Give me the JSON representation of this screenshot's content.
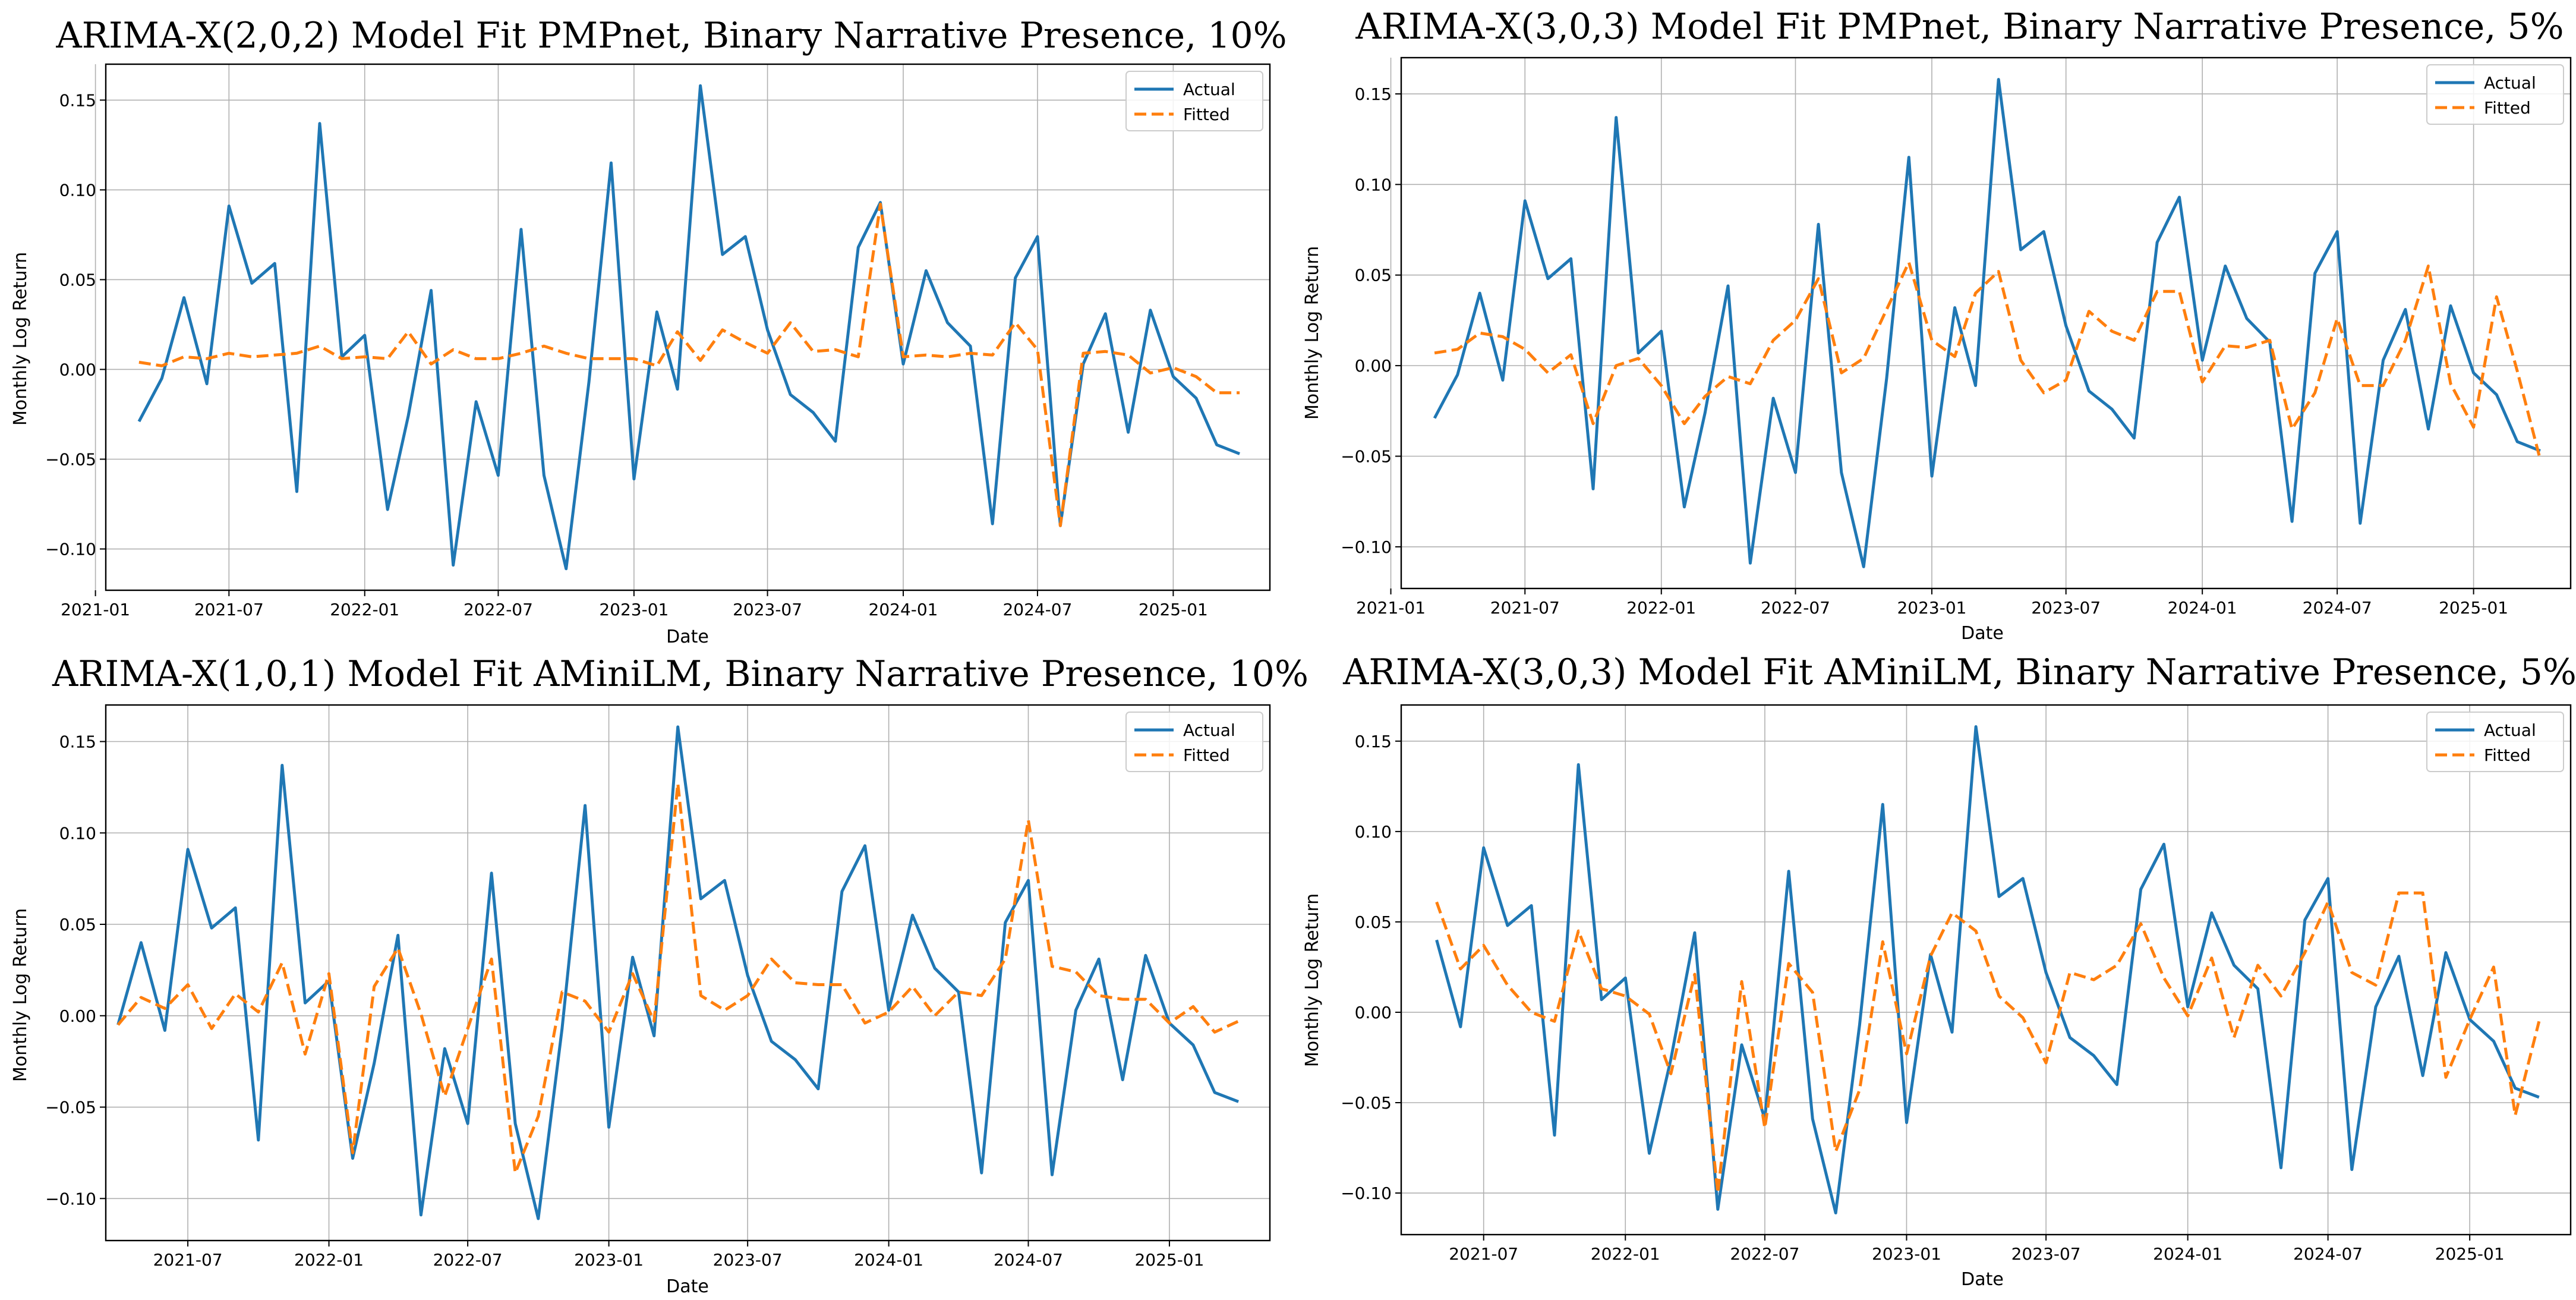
{
  "colors": {
    "actual": "#1f77b4",
    "fitted": "#ff7f0e",
    "grid": "#b0b0b0"
  },
  "legend": {
    "actual": "Actual",
    "fitted": "Fitted",
    "placement": "upper-right"
  },
  "chart_data": [
    {
      "type": "line",
      "title": "ARIMA-X(2,0,2) Model Fit PMPnet, Binary Narrative Presence, 10%",
      "xlabel": "Date",
      "ylabel": "Monthly Log Return",
      "xlim": [
        "2021-01-15",
        "2025-05-12"
      ],
      "ylim": [
        -0.123,
        0.17
      ],
      "x_ticks": [
        "2021-01",
        "2021-07",
        "2022-01",
        "2022-07",
        "2023-01",
        "2023-07",
        "2024-01",
        "2024-07",
        "2025-01"
      ],
      "y_ticks": [
        -0.1,
        -0.05,
        0.0,
        0.05,
        0.1,
        0.15
      ],
      "y_tick_labels": [
        "−0.10",
        "−0.05",
        "0.00",
        "0.05",
        "0.10",
        "0.15"
      ],
      "grid": true,
      "x_start": "2021-03",
      "series": [
        {
          "name": "Actual",
          "style": "solid",
          "values": [
            -0.029,
            -0.005,
            0.04,
            -0.008,
            0.091,
            0.048,
            0.059,
            -0.068,
            0.137,
            0.007,
            0.019,
            -0.078,
            -0.026,
            0.044,
            -0.109,
            -0.018,
            -0.059,
            0.078,
            -0.059,
            -0.111,
            -0.007,
            0.115,
            -0.061,
            0.032,
            -0.011,
            0.158,
            0.064,
            0.074,
            0.022,
            -0.014,
            -0.024,
            -0.04,
            0.068,
            0.093,
            0.003,
            0.055,
            0.026,
            0.013,
            -0.086,
            0.051,
            0.074,
            -0.087,
            0.003,
            0.031,
            -0.035,
            0.033,
            -0.004,
            -0.016,
            -0.042,
            -0.047
          ]
        },
        {
          "name": "Fitted",
          "style": "dashed",
          "values": [
            0.004,
            0.002,
            0.007,
            0.006,
            0.009,
            0.007,
            0.008,
            0.009,
            0.013,
            0.006,
            0.007,
            0.006,
            0.021,
            0.003,
            0.011,
            0.006,
            0.006,
            0.009,
            0.013,
            0.009,
            0.006,
            0.006,
            0.006,
            0.002,
            0.021,
            0.005,
            0.022,
            0.015,
            0.009,
            0.026,
            0.01,
            0.011,
            0.007,
            0.092,
            0.007,
            0.008,
            0.007,
            0.009,
            0.008,
            0.026,
            0.011,
            -0.087,
            0.009,
            0.01,
            0.008,
            -0.002,
            0.001,
            -0.004,
            -0.013,
            -0.013
          ]
        }
      ]
    },
    {
      "type": "line",
      "title": "ARIMA-X(3,0,3) Model Fit PMPnet, Binary Narrative Presence, 5%",
      "xlabel": "Date",
      "ylabel": "Monthly Log Return",
      "xlim": [
        "2021-01-15",
        "2025-05-12"
      ],
      "ylim": [
        -0.123,
        0.17
      ],
      "x_ticks": [
        "2021-01",
        "2021-07",
        "2022-01",
        "2022-07",
        "2023-01",
        "2023-07",
        "2024-01",
        "2024-07",
        "2025-01"
      ],
      "y_ticks": [
        -0.1,
        -0.05,
        0.0,
        0.05,
        0.1,
        0.15
      ],
      "y_tick_labels": [
        "−0.10",
        "−0.05",
        "0.00",
        "0.05",
        "0.10",
        "0.15"
      ],
      "grid": true,
      "x_start": "2021-03",
      "series": [
        {
          "name": "Actual",
          "style": "solid",
          "values": [
            -0.029,
            -0.005,
            0.04,
            -0.008,
            0.091,
            0.048,
            0.059,
            -0.068,
            0.137,
            0.007,
            0.019,
            -0.078,
            -0.026,
            0.044,
            -0.109,
            -0.018,
            -0.059,
            0.078,
            -0.059,
            -0.111,
            -0.007,
            0.115,
            -0.061,
            0.032,
            -0.011,
            0.158,
            0.064,
            0.074,
            0.022,
            -0.014,
            -0.024,
            -0.04,
            0.068,
            0.093,
            0.003,
            0.055,
            0.026,
            0.013,
            -0.086,
            0.051,
            0.074,
            -0.087,
            0.003,
            0.031,
            -0.035,
            0.033,
            -0.004,
            -0.016,
            -0.042,
            -0.047
          ]
        },
        {
          "name": "Fitted",
          "style": "dashed",
          "values": [
            0.007,
            0.009,
            0.018,
            0.016,
            0.009,
            -0.004,
            0.006,
            -0.032,
            0.0,
            0.004,
            -0.011,
            -0.032,
            -0.017,
            -0.006,
            -0.01,
            0.014,
            0.025,
            0.048,
            -0.004,
            0.004,
            0.031,
            0.057,
            0.014,
            0.005,
            0.04,
            0.052,
            0.003,
            -0.015,
            -0.008,
            0.03,
            0.019,
            0.014,
            0.041,
            0.041,
            -0.009,
            0.011,
            0.01,
            0.014,
            -0.035,
            -0.015,
            0.026,
            -0.011,
            -0.011,
            0.014,
            0.055,
            -0.01,
            -0.034,
            0.038,
            -0.003,
            -0.052
          ]
        }
      ]
    },
    {
      "type": "line",
      "title": "ARIMA-X(1,0,1) Model Fit AMiniLM, Binary Narrative Presence, 10%",
      "xlabel": "Date",
      "ylabel": "Monthly Log Return",
      "xlim": [
        "2021-03-16",
        "2025-05-12"
      ],
      "ylim": [
        -0.123,
        0.17
      ],
      "x_ticks": [
        "2021-07",
        "2022-01",
        "2022-07",
        "2023-01",
        "2023-07",
        "2024-01",
        "2024-07",
        "2025-01"
      ],
      "y_ticks": [
        -0.1,
        -0.05,
        0.0,
        0.05,
        0.1,
        0.15
      ],
      "y_tick_labels": [
        "−0.10",
        "−0.05",
        "0.00",
        "0.05",
        "0.10",
        "0.15"
      ],
      "grid": true,
      "x_start": "2021-04",
      "series": [
        {
          "name": "Actual",
          "style": "solid",
          "values": [
            -0.005,
            0.04,
            -0.008,
            0.091,
            0.048,
            0.059,
            -0.068,
            0.137,
            0.007,
            0.019,
            -0.078,
            -0.026,
            0.044,
            -0.109,
            -0.018,
            -0.059,
            0.078,
            -0.059,
            -0.111,
            -0.007,
            0.115,
            -0.061,
            0.032,
            -0.011,
            0.158,
            0.064,
            0.074,
            0.022,
            -0.014,
            -0.024,
            -0.04,
            0.068,
            0.093,
            0.003,
            0.055,
            0.026,
            0.013,
            -0.086,
            0.051,
            0.074,
            -0.087,
            0.003,
            0.031,
            -0.035,
            0.033,
            -0.004,
            -0.016,
            -0.042,
            -0.047
          ]
        },
        {
          "name": "Fitted",
          "style": "dashed",
          "values": [
            -0.005,
            0.01,
            0.004,
            0.017,
            -0.007,
            0.012,
            0.002,
            0.029,
            -0.021,
            0.023,
            -0.075,
            0.016,
            0.037,
            0.001,
            -0.044,
            -0.007,
            0.031,
            -0.086,
            -0.055,
            0.013,
            0.008,
            -0.009,
            0.023,
            -0.003,
            0.127,
            0.011,
            0.003,
            0.011,
            0.031,
            0.018,
            0.017,
            0.017,
            -0.004,
            0.002,
            0.016,
            0.0,
            0.013,
            0.011,
            0.031,
            0.107,
            0.027,
            0.024,
            0.011,
            0.009,
            0.009,
            -0.004,
            0.005,
            -0.009,
            -0.003
          ]
        }
      ]
    },
    {
      "type": "line",
      "title": "ARIMA-X(3,0,3) Model Fit AMiniLM, Binary Narrative Presence, 5%",
      "xlabel": "Date",
      "ylabel": "Monthly Log Return",
      "xlim": [
        "2021-03-16",
        "2025-05-12"
      ],
      "ylim": [
        -0.123,
        0.17
      ],
      "x_ticks": [
        "2021-07",
        "2022-01",
        "2022-07",
        "2023-01",
        "2023-07",
        "2024-01",
        "2024-07",
        "2025-01"
      ],
      "y_ticks": [
        -0.1,
        -0.05,
        0.0,
        0.05,
        0.1,
        0.15
      ],
      "y_tick_labels": [
        "−0.10",
        "−0.05",
        "0.00",
        "0.05",
        "0.10",
        "0.15"
      ],
      "grid": true,
      "x_start": "2021-05",
      "series": [
        {
          "name": "Actual",
          "style": "solid",
          "values": [
            0.04,
            -0.008,
            0.091,
            0.048,
            0.059,
            -0.068,
            0.137,
            0.007,
            0.019,
            -0.078,
            -0.026,
            0.044,
            -0.109,
            -0.018,
            -0.059,
            0.078,
            -0.059,
            -0.111,
            -0.007,
            0.115,
            -0.061,
            0.032,
            -0.011,
            0.158,
            0.064,
            0.074,
            0.022,
            -0.014,
            -0.024,
            -0.04,
            0.068,
            0.093,
            0.003,
            0.055,
            0.026,
            0.013,
            -0.086,
            0.051,
            0.074,
            -0.087,
            0.003,
            0.031,
            -0.035,
            0.033,
            -0.004,
            -0.016,
            -0.042,
            -0.047
          ]
        },
        {
          "name": "Fitted",
          "style": "dashed",
          "values": [
            0.061,
            0.024,
            0.037,
            0.015,
            0.0,
            -0.005,
            0.045,
            0.013,
            0.009,
            -0.001,
            -0.034,
            0.021,
            -0.1,
            0.017,
            -0.064,
            0.027,
            0.011,
            -0.077,
            -0.043,
            0.039,
            -0.023,
            0.031,
            0.055,
            0.045,
            0.009,
            -0.003,
            -0.028,
            0.022,
            0.018,
            0.026,
            0.049,
            0.019,
            -0.002,
            0.03,
            -0.014,
            0.026,
            0.009,
            0.033,
            0.061,
            0.022,
            0.015,
            0.066,
            0.066,
            -0.036,
            -0.004,
            0.025,
            -0.057,
            -0.005
          ]
        }
      ]
    }
  ]
}
